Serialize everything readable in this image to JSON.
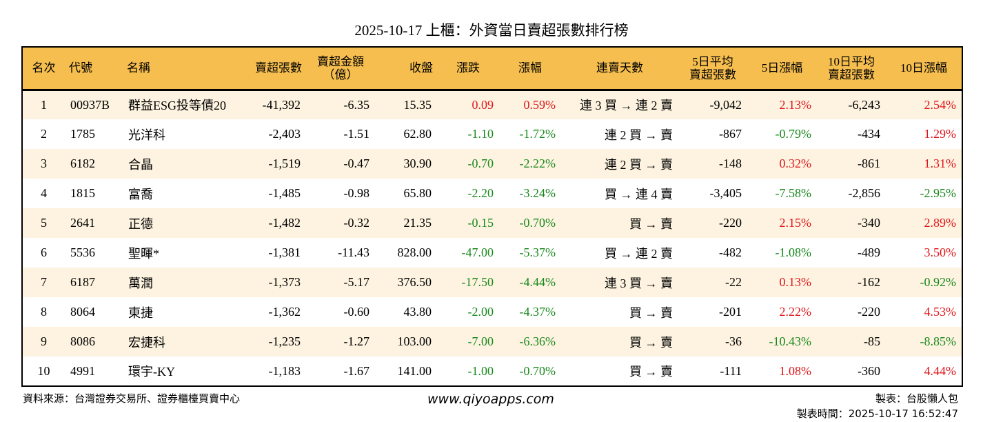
{
  "title": "2025-10-17 上櫃：外資當日賣超張數排行榜",
  "colors": {
    "header": "#F6BE4F",
    "row_alt": "#FDF3E0",
    "up": "#E0151B",
    "down": "#18881C"
  },
  "columns": [
    "名次",
    "代號",
    "名稱",
    "賣超張數",
    "賣超金額\n（億）",
    "收盤",
    "漲跌",
    "漲幅",
    "連賣天數",
    "5日平均\n賣超張數",
    "5日漲幅",
    "10日平均\n賣超張數",
    "10日漲幅"
  ],
  "rows": [
    [
      "1",
      "00937B",
      "群益ESG投等債20",
      "-41,392",
      "-6.35",
      "15.35",
      "0.09",
      "0.59%",
      "連 3 買 → 連 2 賣",
      "-9,042",
      "2.13%",
      "-6,243",
      "2.54%"
    ],
    [
      "2",
      "1785",
      "光洋科",
      "-2,403",
      "-1.51",
      "62.80",
      "-1.10",
      "-1.72%",
      "連 2 買 → 賣",
      "-867",
      "-0.79%",
      "-434",
      "1.29%"
    ],
    [
      "3",
      "6182",
      "合晶",
      "-1,519",
      "-0.47",
      "30.90",
      "-0.70",
      "-2.22%",
      "連 2 買 → 賣",
      "-148",
      "0.32%",
      "-861",
      "1.31%"
    ],
    [
      "4",
      "1815",
      "富喬",
      "-1,485",
      "-0.98",
      "65.80",
      "-2.20",
      "-3.24%",
      "買 → 連 4 賣",
      "-3,405",
      "-7.58%",
      "-2,856",
      "-2.95%"
    ],
    [
      "5",
      "2641",
      "正德",
      "-1,482",
      "-0.32",
      "21.35",
      "-0.15",
      "-0.70%",
      "買 → 賣",
      "-220",
      "2.15%",
      "-340",
      "2.89%"
    ],
    [
      "6",
      "5536",
      "聖暉*",
      "-1,381",
      "-11.43",
      "828.00",
      "-47.00",
      "-5.37%",
      "買 → 連 2 賣",
      "-482",
      "-1.08%",
      "-489",
      "3.50%"
    ],
    [
      "7",
      "6187",
      "萬潤",
      "-1,373",
      "-5.17",
      "376.50",
      "-17.50",
      "-4.44%",
      "連 3 買 → 賣",
      "-22",
      "0.13%",
      "-162",
      "-0.92%"
    ],
    [
      "8",
      "8064",
      "東捷",
      "-1,362",
      "-0.60",
      "43.80",
      "-2.00",
      "-4.37%",
      "買 → 賣",
      "-201",
      "2.22%",
      "-220",
      "4.53%"
    ],
    [
      "9",
      "8086",
      "宏捷科",
      "-1,235",
      "-1.27",
      "103.00",
      "-7.00",
      "-6.36%",
      "買 → 賣",
      "-36",
      "-10.43%",
      "-85",
      "-8.85%"
    ],
    [
      "10",
      "4991",
      "環宇-KY",
      "-1,183",
      "-1.67",
      "141.00",
      "-1.00",
      "-0.70%",
      "買 → 賣",
      "-111",
      "1.08%",
      "-360",
      "4.44%"
    ]
  ],
  "footer": {
    "source": "資料來源：台灣證券交易所、證券櫃檯買賣中心",
    "url": "www.qiyoapps.com",
    "maker": "製表：台股懶人包",
    "time": "製表時間：2025-10-17 16:52:47"
  }
}
